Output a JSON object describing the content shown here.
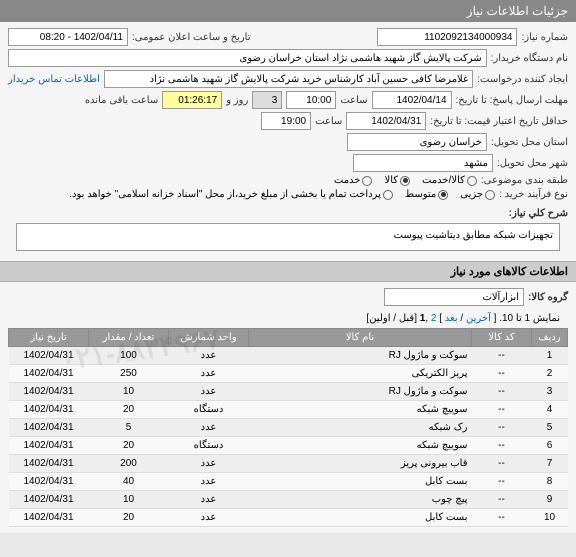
{
  "header": {
    "title": "جزئیات اطلاعات نیاز"
  },
  "form": {
    "need_no_label": "شماره نیاز:",
    "need_no": "1102092134000934",
    "announce_label": "تاریخ و ساعت اعلان عمومی:",
    "announce_val": "1402/04/11 - 08:20",
    "buyer_label": "نام دستگاه خریدار:",
    "buyer_val": "شرکت پالایش گاز شهید هاشمی نژاد   استان خراسان رضوی",
    "creator_label": "ایجاد کننده درخواست:",
    "creator_val": "غلامرضا کافی حسین آباد کارشناس خرید  شرکت پالایش گاز شهید هاشمی نژاد",
    "contact_link": "اطلاعات تماس خریدار",
    "deadline_label": "مهلت ارسال پاسخ:  تا تاریخ:",
    "deadline_date": "1402/04/14",
    "time_lbl": "ساعت",
    "deadline_time": "10:00",
    "days_val": "3",
    "days_lbl": "روز و",
    "remain_time": "01:26:17",
    "remain_lbl": "ساعت باقی مانده",
    "validity_label": "حداقل تاریخ اعتبار قیمت:  تا تاریخ:",
    "validity_date": "1402/04/31",
    "validity_time": "19:00",
    "province_label": "استان محل تحویل:",
    "province_val": "خراسان رضوی",
    "city_label": "شهر محل تحویل:",
    "city_val": "مشهد",
    "budget_label": "طبقه بندی موضوعی:",
    "budget_opts": [
      "کالا/خدمت",
      "کالا",
      "خدمت"
    ],
    "budget_sel": 1,
    "process_label": "نوع فرآیند خرید :",
    "process_opts": [
      "جزیی",
      "متوسط",
      "پرداخت تمام یا بخشی از مبلغ خرید،از محل \"اسناد خزانه اسلامی\" خواهد بود."
    ],
    "process_sel": 1,
    "desc_label": "شرح کلي نياز:",
    "desc_val": "تجهیزات شبکه مطابق دیتاشیت پیوست"
  },
  "section2": {
    "title": "اطلاعات کالاهای مورد نیاز"
  },
  "group": {
    "label": "گروه کالا:",
    "val": "ابزارآلات"
  },
  "pager": {
    "text1": "نمایش 1 تا 10. [ ",
    "last": "آخرین",
    "sep1": " / ",
    "next": "بعد",
    "sep2": " ] ",
    "p2": "2",
    "sep3": " ,",
    "p1": "1",
    "sep4": " [",
    "prev": "قبل",
    "sep5": " / ",
    "first": "اولین",
    "sep6": "]"
  },
  "table": {
    "headers": [
      "ردیف",
      "کد کالا",
      "نام کالا",
      "واحد شمارش",
      "تعداد / مقدار",
      "تاریخ نیاز"
    ],
    "rows": [
      [
        "1",
        "--",
        "سوکت و ماژول RJ",
        "عدد",
        "100",
        "1402/04/31"
      ],
      [
        "2",
        "--",
        "پریز الکتریکی",
        "عدد",
        "250",
        "1402/04/31"
      ],
      [
        "3",
        "--",
        "سوکت و ماژول RJ",
        "عدد",
        "10",
        "1402/04/31"
      ],
      [
        "4",
        "--",
        "سوییچ شبکه",
        "دستگاه",
        "20",
        "1402/04/31"
      ],
      [
        "5",
        "--",
        "رک شبکه",
        "عدد",
        "5",
        "1402/04/31"
      ],
      [
        "6",
        "--",
        "سوییچ شبکه",
        "دستگاه",
        "20",
        "1402/04/31"
      ],
      [
        "7",
        "--",
        "قاب بیرونی پریز",
        "عدد",
        "200",
        "1402/04/31"
      ],
      [
        "8",
        "--",
        "بست کابل",
        "عدد",
        "40",
        "1402/04/31"
      ],
      [
        "9",
        "--",
        "پیچ چوب",
        "عدد",
        "10",
        "1402/04/31"
      ],
      [
        "10",
        "--",
        "بست کابل",
        "عدد",
        "20",
        "1402/04/31"
      ]
    ]
  },
  "watermark": "۰۲۱-۸۸۳۴۹۶۷۰"
}
